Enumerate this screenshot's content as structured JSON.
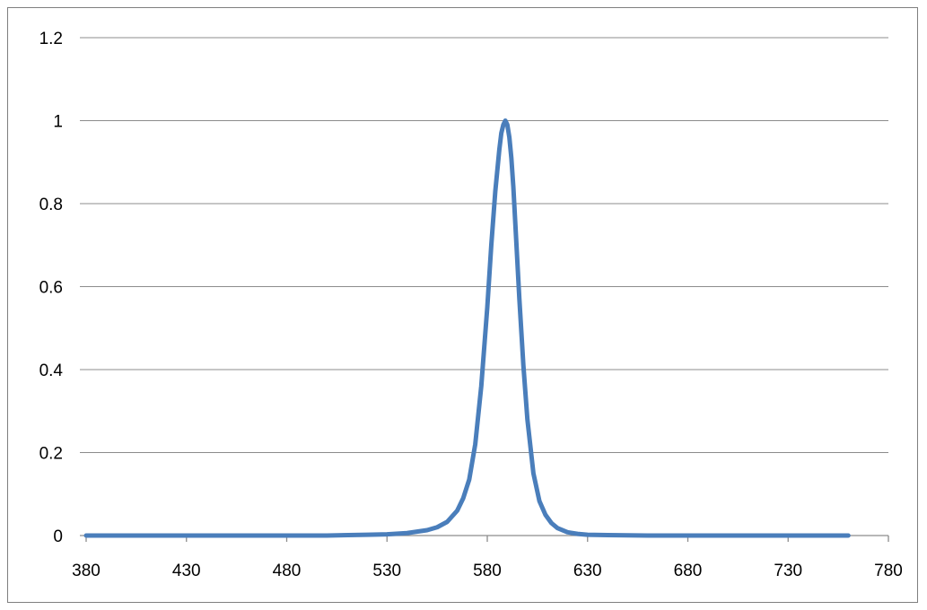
{
  "chart_data": {
    "type": "line",
    "title": "",
    "xlabel": "",
    "ylabel": "",
    "xlim": [
      380,
      780
    ],
    "ylim": [
      0,
      1.2
    ],
    "x_ticks": [
      "380",
      "430",
      "480",
      "530",
      "580",
      "630",
      "680",
      "730",
      "780"
    ],
    "y_ticks": [
      "0",
      "0.2",
      "0.4",
      "0.6",
      "0.8",
      "1",
      "1.2"
    ],
    "grid": "horizontal",
    "legend": "none",
    "series_color": "#4a7ebb",
    "series": [
      {
        "x": [
          380,
          400,
          420,
          440,
          460,
          480,
          500,
          520,
          530,
          540,
          550,
          555,
          560,
          565,
          568,
          571,
          574,
          577,
          580,
          582,
          584,
          586,
          587,
          588,
          589,
          590,
          591,
          592,
          593,
          594,
          596,
          598,
          600,
          603,
          606,
          609,
          612,
          615,
          620,
          625,
          630,
          640,
          660,
          680,
          700,
          720,
          740,
          760
        ],
        "y": [
          0,
          0,
          0,
          0,
          0,
          0,
          0,
          0.002,
          0.003,
          0.006,
          0.013,
          0.02,
          0.033,
          0.06,
          0.09,
          0.135,
          0.22,
          0.36,
          0.55,
          0.7,
          0.83,
          0.93,
          0.97,
          0.99,
          1.0,
          0.99,
          0.96,
          0.91,
          0.84,
          0.75,
          0.57,
          0.41,
          0.28,
          0.15,
          0.083,
          0.05,
          0.03,
          0.018,
          0.008,
          0.004,
          0.002,
          0.001,
          0,
          0,
          0,
          0,
          0,
          0
        ]
      }
    ]
  }
}
